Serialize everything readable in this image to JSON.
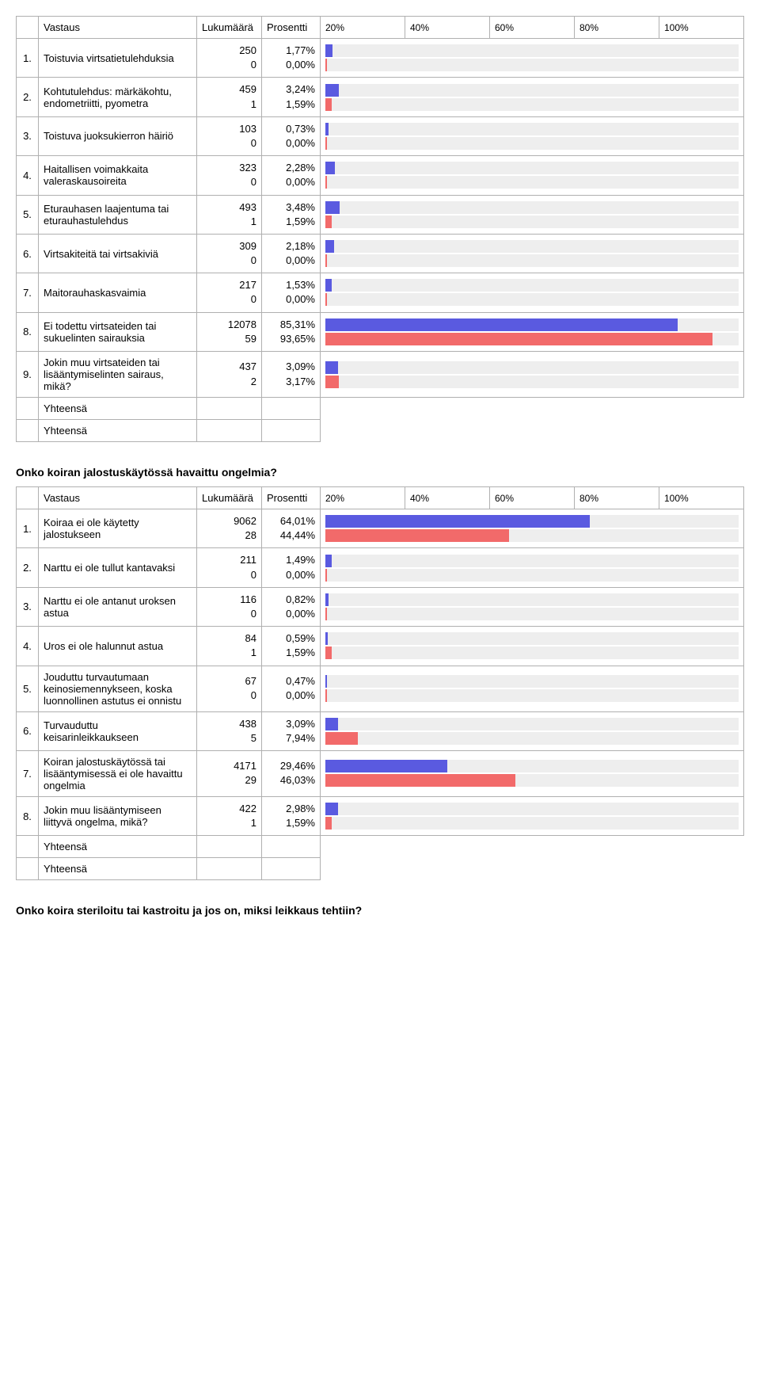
{
  "colors": {
    "bar_a": "#5a5ae0",
    "bar_b": "#f26a6a",
    "track": "#eeeeee",
    "border": "#b0b0b0"
  },
  "columns": {
    "answer": "Vastaus",
    "count": "Lukumäärä",
    "percent": "Prosentti",
    "ticks": [
      "20%",
      "40%",
      "60%",
      "80%",
      "100%"
    ]
  },
  "table1": {
    "rows": [
      {
        "n": "1.",
        "label": "Toistuvia virtsatietulehduksia",
        "c1": "250",
        "c2": "0",
        "p1": "1,77%",
        "p2": "0,00%",
        "v1": 1.77,
        "v2": 0.0
      },
      {
        "n": "2.",
        "label": "Kohtutulehdus: märkäkohtu, endometriitti, pyometra",
        "c1": "459",
        "c2": "1",
        "p1": "3,24%",
        "p2": "1,59%",
        "v1": 3.24,
        "v2": 1.59
      },
      {
        "n": "3.",
        "label": "Toistuva juoksukierron häiriö",
        "c1": "103",
        "c2": "0",
        "p1": "0,73%",
        "p2": "0,00%",
        "v1": 0.73,
        "v2": 0.0
      },
      {
        "n": "4.",
        "label": "Haitallisen voimakkaita valeraskausoireita",
        "c1": "323",
        "c2": "0",
        "p1": "2,28%",
        "p2": "0,00%",
        "v1": 2.28,
        "v2": 0.0
      },
      {
        "n": "5.",
        "label": "Eturauhasen laajentuma tai eturauhastulehdus",
        "c1": "493",
        "c2": "1",
        "p1": "3,48%",
        "p2": "1,59%",
        "v1": 3.48,
        "v2": 1.59
      },
      {
        "n": "6.",
        "label": "Virtsakiteitä tai virtsakiviä",
        "c1": "309",
        "c2": "0",
        "p1": "2,18%",
        "p2": "0,00%",
        "v1": 2.18,
        "v2": 0.0
      },
      {
        "n": "7.",
        "label": "Maitorauhaskasvaimia",
        "c1": "217",
        "c2": "0",
        "p1": "1,53%",
        "p2": "0,00%",
        "v1": 1.53,
        "v2": 0.0
      },
      {
        "n": "8.",
        "label": "Ei todettu virtsateiden tai sukuelinten sairauksia",
        "c1": "12078",
        "c2": "59",
        "p1": "85,31%",
        "p2": "93,65%",
        "v1": 85.31,
        "v2": 93.65
      },
      {
        "n": "9.",
        "label": "Jokin muu virtsateiden tai lisääntymiselinten sairaus, mikä?",
        "c1": "437",
        "c2": "2",
        "p1": "3,09%",
        "p2": "3,17%",
        "v1": 3.09,
        "v2": 3.17
      }
    ],
    "total_label": "Yhteensä"
  },
  "table2": {
    "heading": "Onko koiran jalostuskäytössä havaittu ongelmia?",
    "rows": [
      {
        "n": "1.",
        "label": "Koiraa ei ole käytetty jalostukseen",
        "c1": "9062",
        "c2": "28",
        "p1": "64,01%",
        "p2": "44,44%",
        "v1": 64.01,
        "v2": 44.44
      },
      {
        "n": "2.",
        "label": "Narttu ei ole tullut kantavaksi",
        "c1": "211",
        "c2": "0",
        "p1": "1,49%",
        "p2": "0,00%",
        "v1": 1.49,
        "v2": 0.0
      },
      {
        "n": "3.",
        "label": "Narttu ei ole antanut uroksen astua",
        "c1": "116",
        "c2": "0",
        "p1": "0,82%",
        "p2": "0,00%",
        "v1": 0.82,
        "v2": 0.0
      },
      {
        "n": "4.",
        "label": "Uros ei ole halunnut astua",
        "c1": "84",
        "c2": "1",
        "p1": "0,59%",
        "p2": "1,59%",
        "v1": 0.59,
        "v2": 1.59
      },
      {
        "n": "5.",
        "label": "Jouduttu turvautumaan keinosiemennykseen, koska luonnollinen astutus ei onnistu",
        "c1": "67",
        "c2": "0",
        "p1": "0,47%",
        "p2": "0,00%",
        "v1": 0.47,
        "v2": 0.0
      },
      {
        "n": "6.",
        "label": "Turvauduttu keisarinleikkaukseen",
        "c1": "438",
        "c2": "5",
        "p1": "3,09%",
        "p2": "7,94%",
        "v1": 3.09,
        "v2": 7.94
      },
      {
        "n": "7.",
        "label": "Koiran jalostuskäytössä tai lisääntymisessä ei ole havaittu ongelmia",
        "c1": "4171",
        "c2": "29",
        "p1": "29,46%",
        "p2": "46,03%",
        "v1": 29.46,
        "v2": 46.03
      },
      {
        "n": "8.",
        "label": "Jokin muu lisääntymiseen liittyvä ongelma, mikä?",
        "c1": "422",
        "c2": "1",
        "p1": "2,98%",
        "p2": "1,59%",
        "v1": 2.98,
        "v2": 1.59
      }
    ],
    "total_label": "Yhteensä"
  },
  "footer_question": "Onko koira steriloitu tai kastroitu ja jos on, miksi leikkaus tehtiin?"
}
